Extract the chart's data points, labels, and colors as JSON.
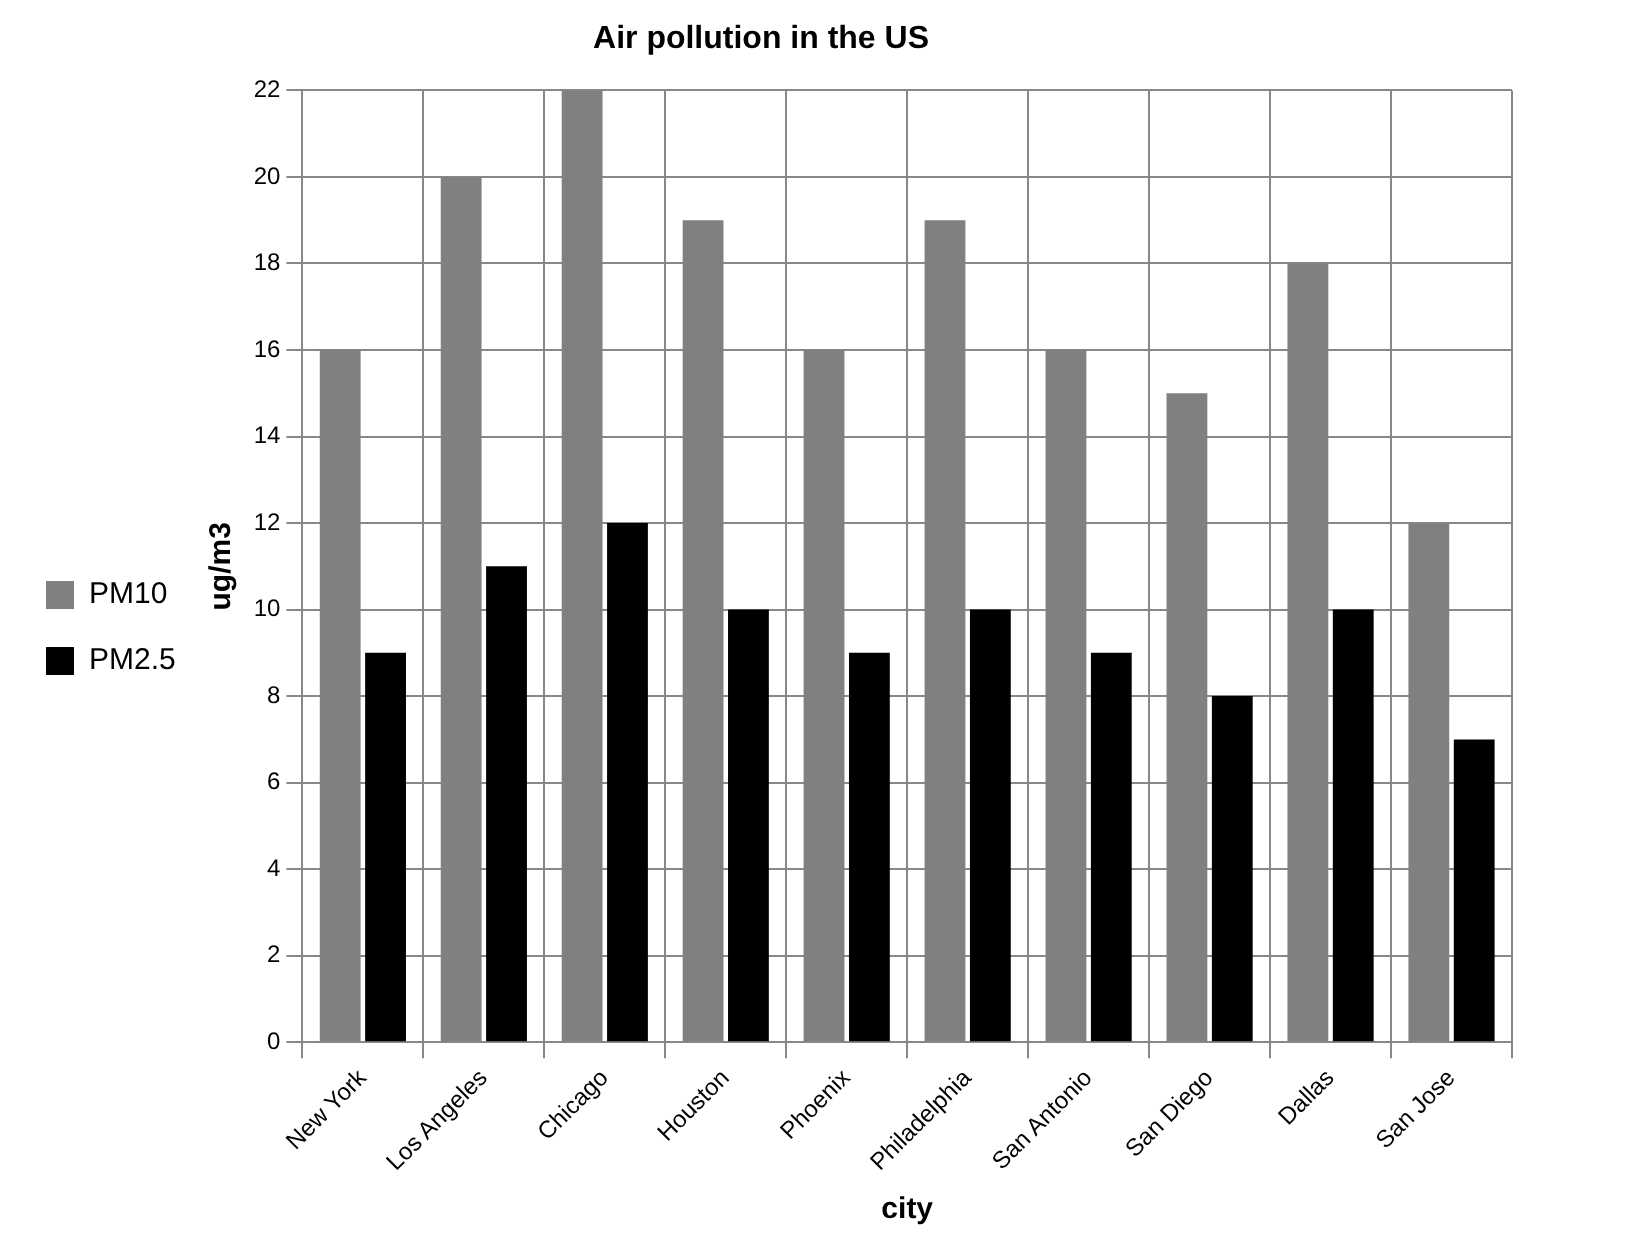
{
  "chart_data": {
    "type": "bar",
    "title": "Air pollution in the US",
    "xlabel": "city",
    "ylabel": "ug/m3",
    "categories": [
      "New York",
      "Los Angeles",
      "Chicago",
      "Houston",
      "Phoenix",
      "Philadelphia",
      "San Antonio",
      "San Diego",
      "Dallas",
      "San Jose"
    ],
    "series": [
      {
        "name": "PM10",
        "color": "#808080",
        "values": [
          16,
          20,
          22,
          19,
          16,
          19,
          16,
          15,
          18,
          12
        ]
      },
      {
        "name": "PM2.5",
        "color": "#000000",
        "values": [
          9,
          11,
          12,
          10,
          9,
          10,
          9,
          8,
          10,
          7
        ]
      }
    ],
    "ylim": [
      0,
      22
    ],
    "yticks": [
      0,
      2,
      4,
      6,
      8,
      10,
      12,
      14,
      16,
      18,
      20,
      22
    ],
    "grid": true,
    "legend": "left"
  }
}
